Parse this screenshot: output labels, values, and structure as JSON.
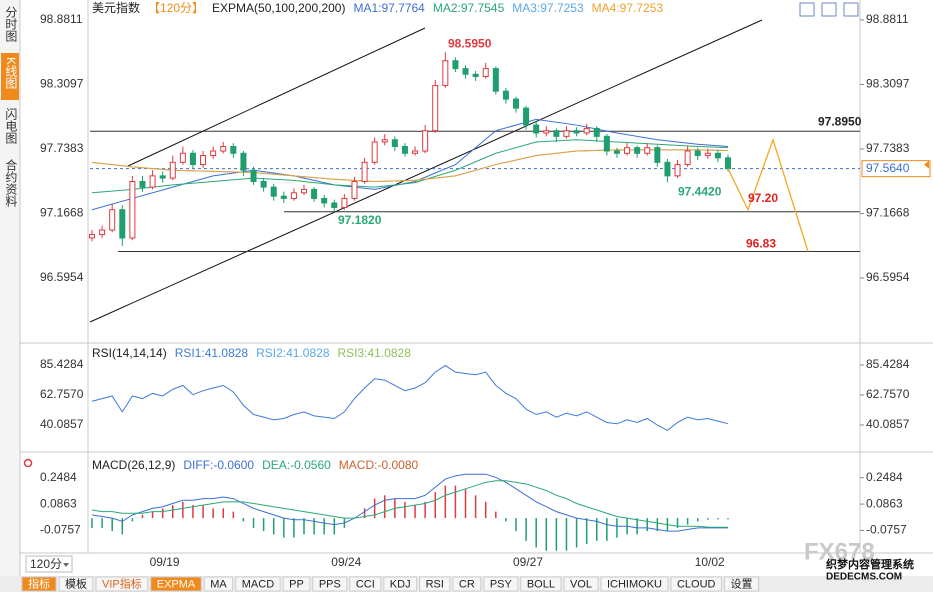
{
  "tabs": [
    {
      "label": "分时图",
      "active": false
    },
    {
      "label": "K线图",
      "active": true
    },
    {
      "label": "闪电图",
      "active": false
    },
    {
      "label": "合约资料",
      "active": false
    }
  ],
  "period": "120分",
  "toolbar": [
    {
      "label": "指标",
      "active": true
    },
    {
      "label": "模板",
      "active": false
    },
    {
      "label": "VIP指标",
      "active": false
    },
    {
      "label": "EXPMA",
      "active": true
    },
    {
      "label": "MA",
      "active": false
    },
    {
      "label": "MACD",
      "active": false
    },
    {
      "label": "PP",
      "active": false
    },
    {
      "label": "PPS",
      "active": false
    },
    {
      "label": "CCI",
      "active": false
    },
    {
      "label": "KDJ",
      "active": false
    },
    {
      "label": "RSI",
      "active": false
    },
    {
      "label": "CR",
      "active": false
    },
    {
      "label": "PSY",
      "active": false
    },
    {
      "label": "BOLL",
      "active": false
    },
    {
      "label": "VOL",
      "active": false
    },
    {
      "label": "ICHIMOKU",
      "active": false
    },
    {
      "label": "CLOUD",
      "active": false
    },
    {
      "label": "设置",
      "active": false
    }
  ],
  "watermark": {
    "brand": "FX678",
    "cms": "织梦内容管理系统",
    "site": "DEDECMS.COM"
  },
  "chart_data": [
    {
      "type": "candlestick",
      "title": "美元指数",
      "period_label": "【120分】",
      "indicator": "EXPMA(50,100,200,200)",
      "ylim": [
        96.046,
        98.987
      ],
      "yticks": [
        98.8811,
        98.3097,
        97.7383,
        97.1668,
        96.5954
      ],
      "up_color": "#e0393e",
      "down_color": "#1f9e6e",
      "categories": [
        null,
        null,
        null,
        null,
        null,
        null,
        "09/19",
        null,
        null,
        null,
        null,
        null,
        null,
        null,
        null,
        null,
        null,
        null,
        null,
        null,
        null,
        null,
        null,
        null,
        "09/24",
        null,
        null,
        null,
        null,
        null,
        null,
        null,
        null,
        null,
        null,
        null,
        null,
        null,
        null,
        null,
        null,
        null,
        "09/27",
        null,
        null,
        null,
        null,
        null,
        null,
        null,
        null,
        null,
        null,
        null,
        null,
        null,
        null,
        null,
        null,
        null,
        "10/02",
        null,
        null,
        null
      ],
      "candles": [
        [
          96.95,
          97.02,
          96.92,
          96.98
        ],
        [
          96.98,
          97.06,
          96.95,
          97.02
        ],
        [
          97.02,
          97.25,
          97.0,
          97.2
        ],
        [
          97.2,
          97.24,
          96.88,
          96.95
        ],
        [
          96.95,
          97.5,
          96.93,
          97.45
        ],
        [
          97.45,
          97.5,
          97.36,
          97.4
        ],
        [
          97.4,
          97.55,
          97.38,
          97.5
        ],
        [
          97.5,
          97.54,
          97.44,
          97.48
        ],
        [
          97.48,
          97.68,
          97.46,
          97.62
        ],
        [
          97.62,
          97.76,
          97.6,
          97.7
        ],
        [
          97.7,
          97.73,
          97.56,
          97.6
        ],
        [
          97.6,
          97.72,
          97.57,
          97.68
        ],
        [
          97.68,
          97.76,
          97.65,
          97.72
        ],
        [
          97.72,
          97.8,
          97.7,
          97.76
        ],
        [
          97.76,
          97.79,
          97.66,
          97.7
        ],
        [
          97.7,
          97.72,
          97.5,
          97.55
        ],
        [
          97.55,
          97.58,
          97.42,
          97.45
        ],
        [
          97.45,
          97.48,
          97.36,
          97.4
        ],
        [
          97.4,
          97.43,
          97.28,
          97.32
        ],
        [
          97.32,
          97.36,
          97.26,
          97.3
        ],
        [
          97.3,
          97.39,
          97.28,
          97.35
        ],
        [
          97.35,
          97.42,
          97.33,
          97.38
        ],
        [
          97.38,
          97.4,
          97.27,
          97.3
        ],
        [
          97.3,
          97.33,
          97.22,
          97.26
        ],
        [
          97.26,
          97.29,
          97.182,
          97.22
        ],
        [
          97.22,
          97.34,
          97.2,
          97.3
        ],
        [
          97.3,
          97.49,
          97.28,
          97.45
        ],
        [
          97.45,
          97.66,
          97.43,
          97.62
        ],
        [
          97.62,
          97.84,
          97.6,
          97.8
        ],
        [
          97.8,
          97.87,
          97.77,
          97.82
        ],
        [
          97.82,
          97.85,
          97.72,
          97.76
        ],
        [
          97.76,
          97.79,
          97.67,
          97.7
        ],
        [
          97.7,
          97.76,
          97.68,
          97.72
        ],
        [
          97.72,
          97.95,
          97.7,
          97.9
        ],
        [
          97.9,
          98.35,
          97.88,
          98.3
        ],
        [
          98.3,
          98.595,
          98.28,
          98.52
        ],
        [
          98.52,
          98.55,
          98.42,
          98.45
        ],
        [
          98.45,
          98.48,
          98.36,
          98.4
        ],
        [
          98.4,
          98.43,
          98.34,
          98.38
        ],
        [
          98.38,
          98.5,
          98.36,
          98.45
        ],
        [
          98.45,
          98.47,
          98.22,
          98.25
        ],
        [
          98.25,
          98.28,
          98.14,
          98.18
        ],
        [
          98.18,
          98.2,
          98.06,
          98.1
        ],
        [
          98.1,
          98.12,
          97.91,
          97.95
        ],
        [
          97.95,
          97.98,
          97.84,
          97.88
        ],
        [
          97.88,
          97.94,
          97.85,
          97.9
        ],
        [
          97.9,
          97.92,
          97.8,
          97.85
        ],
        [
          97.85,
          97.94,
          97.83,
          97.9
        ],
        [
          97.9,
          97.93,
          97.85,
          97.88
        ],
        [
          97.88,
          97.96,
          97.86,
          97.92
        ],
        [
          97.92,
          97.94,
          97.8,
          97.85
        ],
        [
          97.85,
          97.87,
          97.68,
          97.72
        ],
        [
          97.72,
          97.75,
          97.66,
          97.7
        ],
        [
          97.7,
          97.79,
          97.68,
          97.75
        ],
        [
          97.75,
          97.77,
          97.66,
          97.7
        ],
        [
          97.7,
          97.79,
          97.68,
          97.75
        ],
        [
          97.75,
          97.77,
          97.58,
          97.62
        ],
        [
          97.62,
          97.65,
          97.442,
          97.5
        ],
        [
          97.5,
          97.64,
          97.48,
          97.6
        ],
        [
          97.6,
          97.76,
          97.58,
          97.72
        ],
        [
          97.72,
          97.75,
          97.64,
          97.68
        ],
        [
          97.68,
          97.74,
          97.65,
          97.7
        ],
        [
          97.7,
          97.73,
          97.62,
          97.66
        ],
        [
          97.66,
          97.69,
          97.54,
          97.564
        ]
      ],
      "series": [
        {
          "name": "MA1:97.7764",
          "color": "#3b6fd6",
          "x": [
            0,
            4,
            8,
            12,
            16,
            20,
            24,
            28,
            32,
            36,
            40,
            44,
            48,
            52,
            56,
            60,
            63
          ],
          "values": [
            97.2,
            97.3,
            97.4,
            97.5,
            97.55,
            97.5,
            97.42,
            97.38,
            97.45,
            97.6,
            97.9,
            98.0,
            97.95,
            97.88,
            97.82,
            97.78,
            97.76
          ]
        },
        {
          "name": "MA2:97.7545",
          "color": "#2aa876",
          "x": [
            0,
            4,
            8,
            12,
            16,
            20,
            24,
            28,
            32,
            36,
            40,
            44,
            48,
            52,
            56,
            60,
            63
          ],
          "values": [
            97.35,
            97.38,
            97.42,
            97.45,
            97.48,
            97.46,
            97.42,
            97.4,
            97.44,
            97.55,
            97.7,
            97.8,
            97.82,
            97.8,
            97.78,
            97.76,
            97.75
          ]
        },
        {
          "name": "MA3:97.7253",
          "color": "#5aa9e6",
          "x": [
            0,
            4,
            8,
            12,
            16,
            20,
            24,
            28,
            32,
            36,
            40,
            44,
            48,
            52,
            56,
            60,
            63
          ],
          "values": [
            97.62,
            97.58,
            97.55,
            97.54,
            97.53,
            97.5,
            97.47,
            97.45,
            97.46,
            97.5,
            97.6,
            97.68,
            97.72,
            97.73,
            97.73,
            97.73,
            97.725
          ]
        },
        {
          "name": "MA4:97.7253",
          "color": "#f0a030",
          "x": [
            0,
            4,
            8,
            12,
            16,
            20,
            24,
            28,
            32,
            36,
            40,
            44,
            48,
            52,
            56,
            60,
            63
          ],
          "values": [
            97.62,
            97.58,
            97.55,
            97.54,
            97.53,
            97.5,
            97.47,
            97.45,
            97.46,
            97.5,
            97.6,
            97.68,
            97.72,
            97.73,
            97.73,
            97.73,
            97.725
          ]
        }
      ],
      "levels": [
        97.895,
        97.182,
        96.83
      ],
      "price_labels": [
        {
          "value": 98.595,
          "label": "98.5950",
          "color": "#e0393e"
        },
        {
          "value": 97.182,
          "label": "97.1820",
          "color": "#2aa876"
        },
        {
          "value": 97.442,
          "label": "97.4420",
          "color": "#2aa876"
        },
        {
          "value": 97.895,
          "label": "97.8950",
          "color": "#222222"
        }
      ],
      "forecast": {
        "color": "#f5a623",
        "values": [
          97.564,
          97.2,
          97.82,
          96.83
        ],
        "value_labels": [
          null,
          "97.20",
          null,
          "96.83"
        ],
        "label_color": "#e0201e"
      },
      "last": {
        "value": 97.564,
        "label": "97.5640",
        "color": "#3b6fd6"
      }
    },
    {
      "type": "line",
      "title": "RSI(14,14,14)",
      "ylim": [
        21.2,
        100.5
      ],
      "yticks": [
        85.4284,
        {
          "value": 62.757,
          "label": "62.7570"
        },
        40.0857
      ],
      "series": [
        {
          "name": "RSI1:41.0828",
          "color": "#3d7bd9",
          "values": [
            58,
            60,
            62,
            50,
            62,
            60,
            64,
            62,
            67,
            70,
            63,
            66,
            68,
            70,
            65,
            55,
            48,
            46,
            44,
            45,
            48,
            50,
            47,
            46,
            45,
            50,
            60,
            68,
            75,
            74,
            70,
            66,
            68,
            72,
            80,
            85,
            80,
            79,
            78,
            80,
            70,
            64,
            60,
            52,
            48,
            50,
            46,
            49,
            47,
            50,
            46,
            42,
            41,
            44,
            42,
            45,
            40,
            36,
            42,
            46,
            44,
            45,
            43,
            41.0828
          ]
        }
      ],
      "legend_extra": [
        {
          "name": "RSI2:41.0828",
          "color": "#5aa9e6"
        },
        {
          "name": "RSI3:41.0828",
          "color": "#8cbf5a"
        }
      ]
    },
    {
      "type": "macd",
      "title": "MACD(26,12,9)",
      "ylim": [
        -0.1837,
        0.388
      ],
      "yticks": [
        0.2484,
        0.0863,
        -0.0757
      ],
      "series": [
        {
          "name": "DIFF:-0.0600",
          "color": "#3b6fd6",
          "values": [
            0.02,
            0.01,
            0.0,
            -0.02,
            0.02,
            0.04,
            0.06,
            0.07,
            0.09,
            0.11,
            0.11,
            0.12,
            0.12,
            0.13,
            0.12,
            0.09,
            0.06,
            0.04,
            0.02,
            0.0,
            -0.01,
            -0.01,
            -0.02,
            -0.03,
            -0.04,
            -0.03,
            0.0,
            0.04,
            0.08,
            0.11,
            0.12,
            0.12,
            0.12,
            0.14,
            0.19,
            0.24,
            0.26,
            0.27,
            0.27,
            0.27,
            0.25,
            0.22,
            0.18,
            0.14,
            0.1,
            0.07,
            0.04,
            0.02,
            0.0,
            -0.01,
            -0.02,
            -0.04,
            -0.05,
            -0.05,
            -0.06,
            -0.06,
            -0.07,
            -0.08,
            -0.08,
            -0.07,
            -0.06,
            -0.06,
            -0.06,
            -0.06
          ]
        },
        {
          "name": "DEA:-0.0560",
          "color": "#2aa876",
          "values": [
            0.05,
            0.04,
            0.04,
            0.03,
            0.03,
            0.03,
            0.04,
            0.04,
            0.05,
            0.06,
            0.07,
            0.08,
            0.09,
            0.1,
            0.1,
            0.1,
            0.09,
            0.08,
            0.07,
            0.06,
            0.05,
            0.04,
            0.03,
            0.02,
            0.01,
            0.0,
            0.0,
            0.01,
            0.02,
            0.04,
            0.06,
            0.07,
            0.08,
            0.09,
            0.11,
            0.14,
            0.16,
            0.18,
            0.2,
            0.22,
            0.23,
            0.23,
            0.22,
            0.21,
            0.19,
            0.17,
            0.14,
            0.12,
            0.09,
            0.07,
            0.05,
            0.03,
            0.01,
            0.0,
            -0.01,
            -0.02,
            -0.03,
            -0.04,
            -0.05,
            -0.05,
            -0.05,
            -0.055,
            -0.056,
            -0.056
          ]
        }
      ],
      "histogram": {
        "name": "MACD:-0.0080",
        "color": "#c9602e",
        "up_color": "#e0393e",
        "down_color": "#1f9e6e",
        "values": [
          -0.06,
          -0.06,
          -0.08,
          -0.1,
          -0.02,
          0.02,
          0.04,
          0.06,
          0.08,
          0.1,
          0.08,
          0.08,
          0.06,
          0.06,
          0.04,
          -0.02,
          -0.06,
          -0.08,
          -0.1,
          -0.12,
          -0.12,
          -0.1,
          -0.1,
          -0.1,
          -0.1,
          -0.06,
          0.0,
          0.06,
          0.12,
          0.14,
          0.12,
          0.1,
          0.08,
          0.1,
          0.16,
          0.2,
          0.2,
          0.18,
          0.14,
          0.1,
          0.04,
          -0.02,
          -0.08,
          -0.14,
          -0.18,
          -0.2,
          -0.2,
          -0.2,
          -0.18,
          -0.16,
          -0.14,
          -0.14,
          -0.12,
          -0.1,
          -0.1,
          -0.08,
          -0.08,
          -0.08,
          -0.06,
          -0.04,
          -0.02,
          -0.01,
          -0.008,
          -0.008
        ]
      }
    }
  ]
}
